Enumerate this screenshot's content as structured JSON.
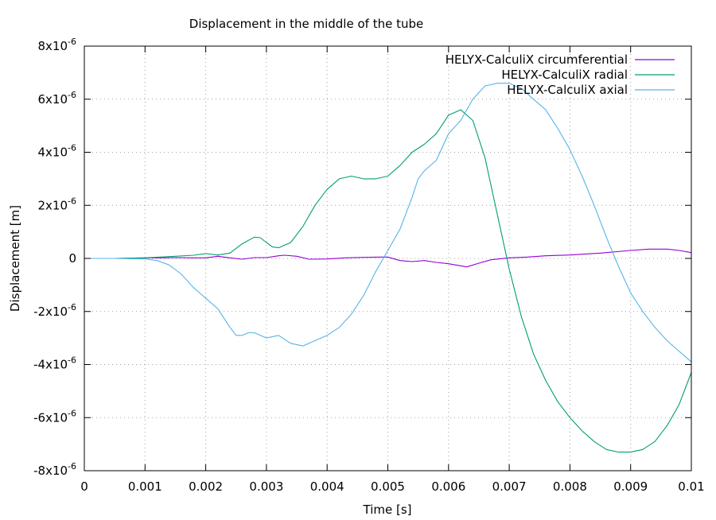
{
  "chart_data": {
    "type": "line",
    "title": "Displacement in the middle of the tube",
    "xlabel": "Time [s]",
    "ylabel": "Displacement [m]",
    "xlim": [
      0,
      0.01
    ],
    "ylim": [
      -8e-06,
      8e-06
    ],
    "grid": true,
    "legend_position": "top-right",
    "x_ticks": [
      {
        "value": 0,
        "label": "0"
      },
      {
        "value": 0.001,
        "label": "0.001"
      },
      {
        "value": 0.002,
        "label": "0.002"
      },
      {
        "value": 0.003,
        "label": "0.003"
      },
      {
        "value": 0.004,
        "label": "0.004"
      },
      {
        "value": 0.005,
        "label": "0.005"
      },
      {
        "value": 0.006,
        "label": "0.006"
      },
      {
        "value": 0.007,
        "label": "0.007"
      },
      {
        "value": 0.008,
        "label": "0.008"
      },
      {
        "value": 0.009,
        "label": "0.009"
      },
      {
        "value": 0.01,
        "label": "0.01"
      }
    ],
    "y_ticks": [
      {
        "value": 8e-06,
        "mantissa": "8x10",
        "exponent": "-6"
      },
      {
        "value": 6e-06,
        "mantissa": "6x10",
        "exponent": "-6"
      },
      {
        "value": 4e-06,
        "mantissa": "4x10",
        "exponent": "-6"
      },
      {
        "value": 2e-06,
        "mantissa": "2x10",
        "exponent": "-6"
      },
      {
        "value": 0,
        "mantissa": "0",
        "exponent": ""
      },
      {
        "value": -2e-06,
        "mantissa": "-2x10",
        "exponent": "-6"
      },
      {
        "value": -4e-06,
        "mantissa": "-4x10",
        "exponent": "-6"
      },
      {
        "value": -6e-06,
        "mantissa": "-6x10",
        "exponent": "-6"
      },
      {
        "value": -8e-06,
        "mantissa": "-8x10",
        "exponent": "-6"
      }
    ],
    "series": [
      {
        "name": "HELYX-CalculiX circumferential",
        "color": "#9400d3",
        "x": [
          0,
          0.0005,
          0.001,
          0.0013,
          0.0015,
          0.0018,
          0.002,
          0.0022,
          0.0024,
          0.0026,
          0.0028,
          0.003,
          0.0032,
          0.0033,
          0.0035,
          0.0037,
          0.004,
          0.0043,
          0.0046,
          0.0049,
          0.005,
          0.0052,
          0.0054,
          0.0056,
          0.0058,
          0.006,
          0.0062,
          0.0063,
          0.0065,
          0.0067,
          0.007,
          0.0073,
          0.0076,
          0.008,
          0.0085,
          0.009,
          0.0093,
          0.0096,
          0.0098,
          0.01
        ],
        "y": [
          0,
          0,
          2e-08,
          2e-08,
          3e-08,
          2e-08,
          2e-08,
          8e-08,
          2e-08,
          -3e-08,
          3e-08,
          3e-08,
          1e-07,
          1.2e-07,
          8e-08,
          -3e-08,
          -2e-08,
          2e-08,
          4e-08,
          5e-08,
          5e-08,
          -8e-08,
          -1.2e-07,
          -8e-08,
          -1.5e-07,
          -2e-07,
          -2.8e-07,
          -3.2e-07,
          -1.8e-07,
          -5e-08,
          2e-08,
          5e-08,
          1e-07,
          1.3e-07,
          2e-07,
          3e-07,
          3.5e-07,
          3.5e-07,
          3e-07,
          2.2e-07
        ]
      },
      {
        "name": "HELYX-CalculiX radial",
        "color": "#009e73",
        "x": [
          0,
          0.0005,
          0.001,
          0.0015,
          0.0018,
          0.002,
          0.0022,
          0.0024,
          0.0026,
          0.0028,
          0.0029,
          0.003,
          0.0031,
          0.0032,
          0.0034,
          0.0036,
          0.0038,
          0.004,
          0.0042,
          0.0044,
          0.0046,
          0.0048,
          0.005,
          0.0052,
          0.0054,
          0.0056,
          0.0058,
          0.006,
          0.0062,
          0.0064,
          0.0066,
          0.0068,
          0.007,
          0.0072,
          0.0074,
          0.0076,
          0.0078,
          0.008,
          0.0082,
          0.0084,
          0.0086,
          0.0088,
          0.009,
          0.0092,
          0.0094,
          0.0096,
          0.0098,
          0.01
        ],
        "y": [
          0,
          0,
          2e-08,
          8e-08,
          1.2e-07,
          1.8e-07,
          1.3e-07,
          2e-07,
          5.5e-07,
          8e-07,
          7.8e-07,
          6e-07,
          4.3e-07,
          4e-07,
          6e-07,
          1.2e-06,
          2e-06,
          2.6e-06,
          3e-06,
          3.1e-06,
          3e-06,
          3e-06,
          3.1e-06,
          3.5e-06,
          4e-06,
          4.3e-06,
          4.7e-06,
          5.4e-06,
          5.6e-06,
          5.2e-06,
          3.8e-06,
          1.7e-06,
          -4e-07,
          -2.2e-06,
          -3.6e-06,
          -4.6e-06,
          -5.4e-06,
          -6e-06,
          -6.5e-06,
          -6.9e-06,
          -7.2e-06,
          -7.3e-06,
          -7.3e-06,
          -7.2e-06,
          -6.9e-06,
          -6.3e-06,
          -5.5e-06,
          -4.3e-06
        ]
      },
      {
        "name": "HELYX-CalculiX axial",
        "color": "#56b4e9",
        "x": [
          0,
          0.0005,
          0.001,
          0.0012,
          0.0014,
          0.0016,
          0.0018,
          0.002,
          0.0022,
          0.0024,
          0.0025,
          0.0026,
          0.0027,
          0.0028,
          0.0029,
          0.003,
          0.0032,
          0.0034,
          0.0036,
          0.0037,
          0.0038,
          0.004,
          0.0042,
          0.0044,
          0.0046,
          0.0048,
          0.005,
          0.0052,
          0.0054,
          0.0055,
          0.0056,
          0.0058,
          0.006,
          0.0062,
          0.0064,
          0.0066,
          0.0068,
          0.007,
          0.0072,
          0.0074,
          0.0076,
          0.0078,
          0.008,
          0.0082,
          0.0084,
          0.0086,
          0.0088,
          0.009,
          0.0092,
          0.0094,
          0.0096,
          0.0098,
          0.01
        ],
        "y": [
          0,
          0,
          -2e-08,
          -8e-08,
          -2.5e-07,
          -6e-07,
          -1.1e-06,
          -1.5e-06,
          -1.9e-06,
          -2.6e-06,
          -2.9e-06,
          -2.9e-06,
          -2.8e-06,
          -2.8e-06,
          -2.9e-06,
          -3e-06,
          -2.9e-06,
          -3.2e-06,
          -3.3e-06,
          -3.2e-06,
          -3.1e-06,
          -2.9e-06,
          -2.6e-06,
          -2.1e-06,
          -1.4e-06,
          -5e-07,
          3e-07,
          1.1e-06,
          2.3e-06,
          3e-06,
          3.3e-06,
          3.7e-06,
          4.7e-06,
          5.2e-06,
          6e-06,
          6.5e-06,
          6.6e-06,
          6.6e-06,
          6.4e-06,
          6e-06,
          5.6e-06,
          4.9e-06,
          4.1e-06,
          3.1e-06,
          2e-06,
          8e-07,
          -3e-07,
          -1.3e-06,
          -2e-06,
          -2.6e-06,
          -3.1e-06,
          -3.5e-06,
          -3.9e-06
        ]
      }
    ]
  }
}
